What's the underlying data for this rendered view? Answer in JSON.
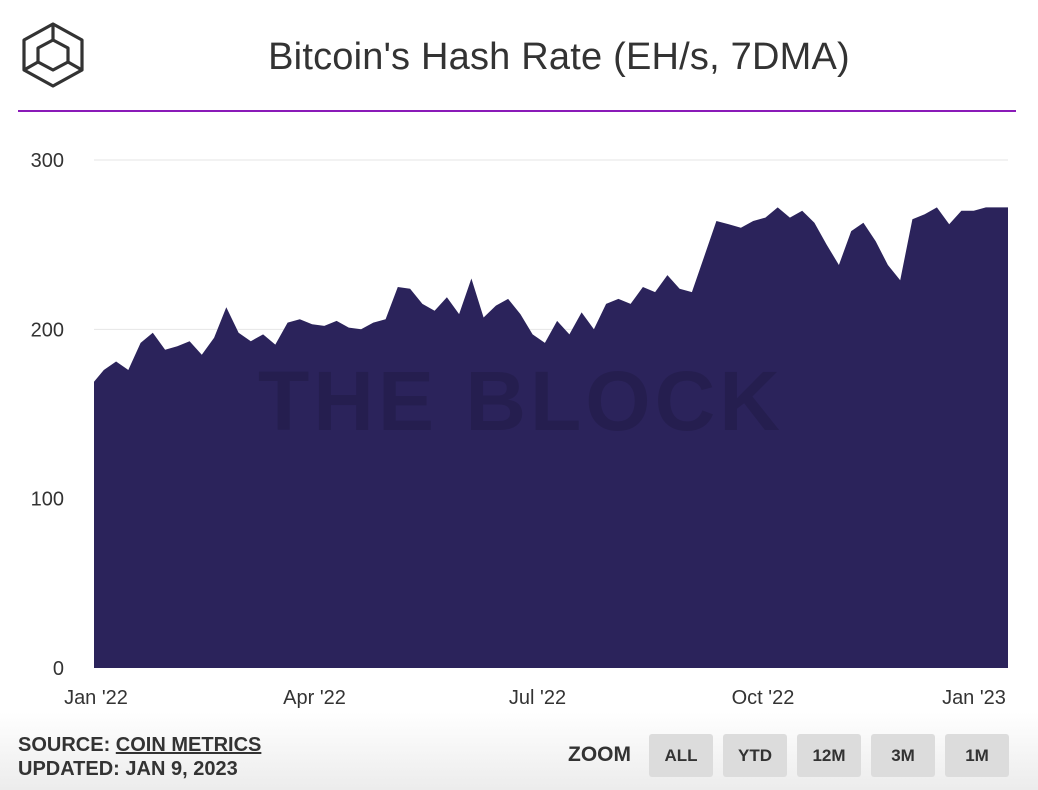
{
  "header": {
    "title": "Bitcoin's Hash Rate (EH/s, 7DMA)"
  },
  "colors": {
    "area": "#2b235b",
    "accent_rule": "#8a1ab8",
    "grid": "#e6e6e6",
    "logo": "#333333"
  },
  "logo": {
    "icon": "cube-logo-icon"
  },
  "watermark": {
    "text": "THE BLOCK"
  },
  "footer": {
    "source_label": "SOURCE: ",
    "source_link": "COIN METRICS",
    "updated": "UPDATED: JAN 9, 2023"
  },
  "zoom": {
    "label": "ZOOM",
    "buttons": [
      "ALL",
      "YTD",
      "12M",
      "3M",
      "1M"
    ]
  },
  "chart_data": {
    "type": "area",
    "title": "Bitcoin's Hash Rate (EH/s, 7DMA)",
    "xlabel": "",
    "ylabel": "",
    "ylim": [
      0,
      300
    ],
    "yticks": [
      "0",
      "100",
      "200",
      "300"
    ],
    "xticks": [
      "Jan '22",
      "Apr '22",
      "Jul '22",
      "Oct '22",
      "Jan '23"
    ],
    "xtick_dates": [
      "2022-01-01",
      "2022-04-01",
      "2022-07-01",
      "2022-10-01",
      "2023-01-01"
    ],
    "grid": true,
    "legend": "none",
    "series": [
      {
        "x": [
          "2022-01-01",
          "2022-01-05",
          "2022-01-10",
          "2022-01-15",
          "2022-01-20",
          "2022-01-25",
          "2022-01-30",
          "2022-02-04",
          "2022-02-09",
          "2022-02-14",
          "2022-02-19",
          "2022-02-24",
          "2022-03-01",
          "2022-03-06",
          "2022-03-11",
          "2022-03-16",
          "2022-03-21",
          "2022-03-26",
          "2022-03-31",
          "2022-04-05",
          "2022-04-10",
          "2022-04-15",
          "2022-04-20",
          "2022-04-25",
          "2022-04-30",
          "2022-05-05",
          "2022-05-10",
          "2022-05-15",
          "2022-05-20",
          "2022-05-25",
          "2022-05-30",
          "2022-06-04",
          "2022-06-09",
          "2022-06-14",
          "2022-06-19",
          "2022-06-24",
          "2022-06-29",
          "2022-07-04",
          "2022-07-09",
          "2022-07-14",
          "2022-07-19",
          "2022-07-24",
          "2022-07-29",
          "2022-08-03",
          "2022-08-08",
          "2022-08-13",
          "2022-08-18",
          "2022-08-23",
          "2022-08-28",
          "2022-09-02",
          "2022-09-07",
          "2022-09-12",
          "2022-09-17",
          "2022-09-22",
          "2022-09-27",
          "2022-10-02",
          "2022-10-07",
          "2022-10-12",
          "2022-10-17",
          "2022-10-22",
          "2022-10-27",
          "2022-11-01",
          "2022-11-06",
          "2022-11-11",
          "2022-11-16",
          "2022-11-21",
          "2022-11-26",
          "2022-12-01",
          "2022-12-06",
          "2022-12-11",
          "2022-12-16",
          "2022-12-21",
          "2022-12-26",
          "2022-12-31",
          "2023-01-04",
          "2023-01-09"
        ],
        "values": [
          169,
          176,
          181,
          176,
          192,
          198,
          188,
          190,
          193,
          185,
          195,
          213,
          198,
          193,
          197,
          191,
          204,
          206,
          203,
          202,
          205,
          201,
          200,
          204,
          206,
          225,
          224,
          215,
          211,
          219,
          209,
          230,
          207,
          214,
          218,
          209,
          197,
          192,
          205,
          197,
          210,
          200,
          215,
          218,
          215,
          225,
          222,
          232,
          224,
          222,
          243,
          264,
          262,
          260,
          264,
          266,
          272,
          266,
          270,
          263,
          250,
          238,
          258,
          263,
          252,
          238,
          229,
          265,
          268,
          272,
          262,
          270,
          270,
          272,
          272,
          272
        ]
      }
    ]
  }
}
